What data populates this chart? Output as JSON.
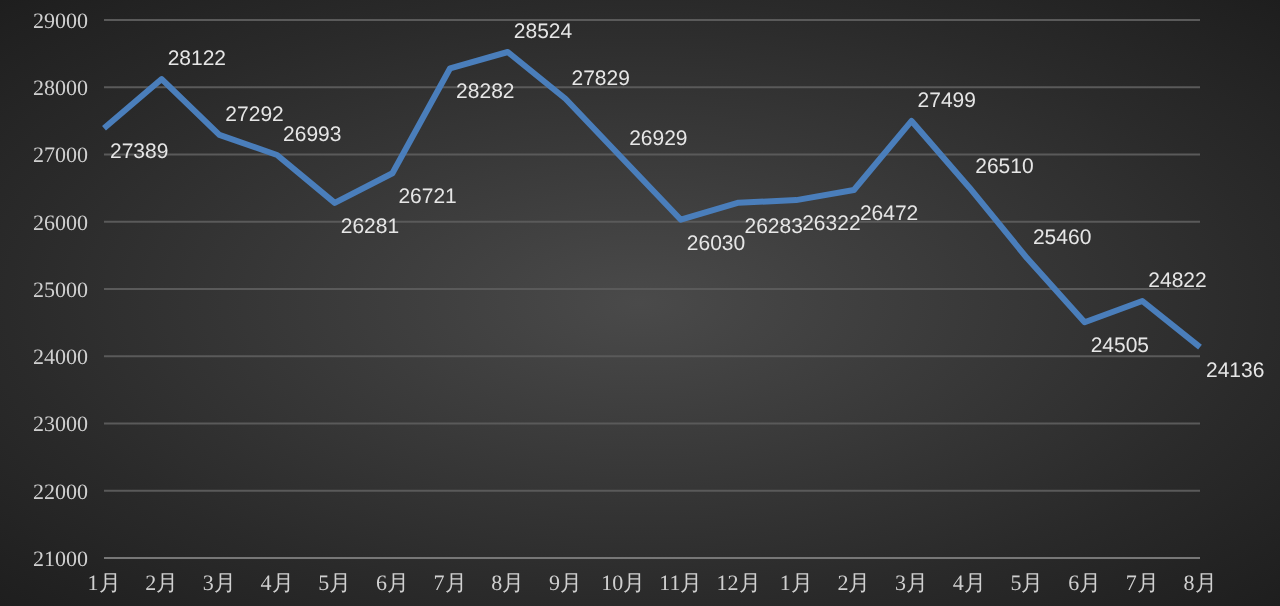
{
  "chart_data": {
    "type": "line",
    "categories": [
      "1月",
      "2月",
      "3月",
      "4月",
      "5月",
      "6月",
      "7月",
      "8月",
      "9月",
      "10月",
      "11月",
      "12月",
      "1月",
      "2月",
      "3月",
      "4月",
      "5月",
      "6月",
      "7月",
      "8月"
    ],
    "series": [
      {
        "color": "#4a7ebb",
        "values": [
          27389,
          28122,
          27292,
          26993,
          26281,
          26721,
          28282,
          28524,
          27829,
          26929,
          26030,
          26283,
          26322,
          26472,
          27499,
          26510,
          25460,
          24505,
          24822,
          24136
        ]
      }
    ],
    "ylim": [
      21000,
      29000
    ],
    "yticks": [
      21000,
      22000,
      23000,
      24000,
      25000,
      26000,
      27000,
      28000,
      29000
    ],
    "grid": "y",
    "data_labels": true,
    "marker": "none",
    "line_style": "solid",
    "legend": false
  }
}
